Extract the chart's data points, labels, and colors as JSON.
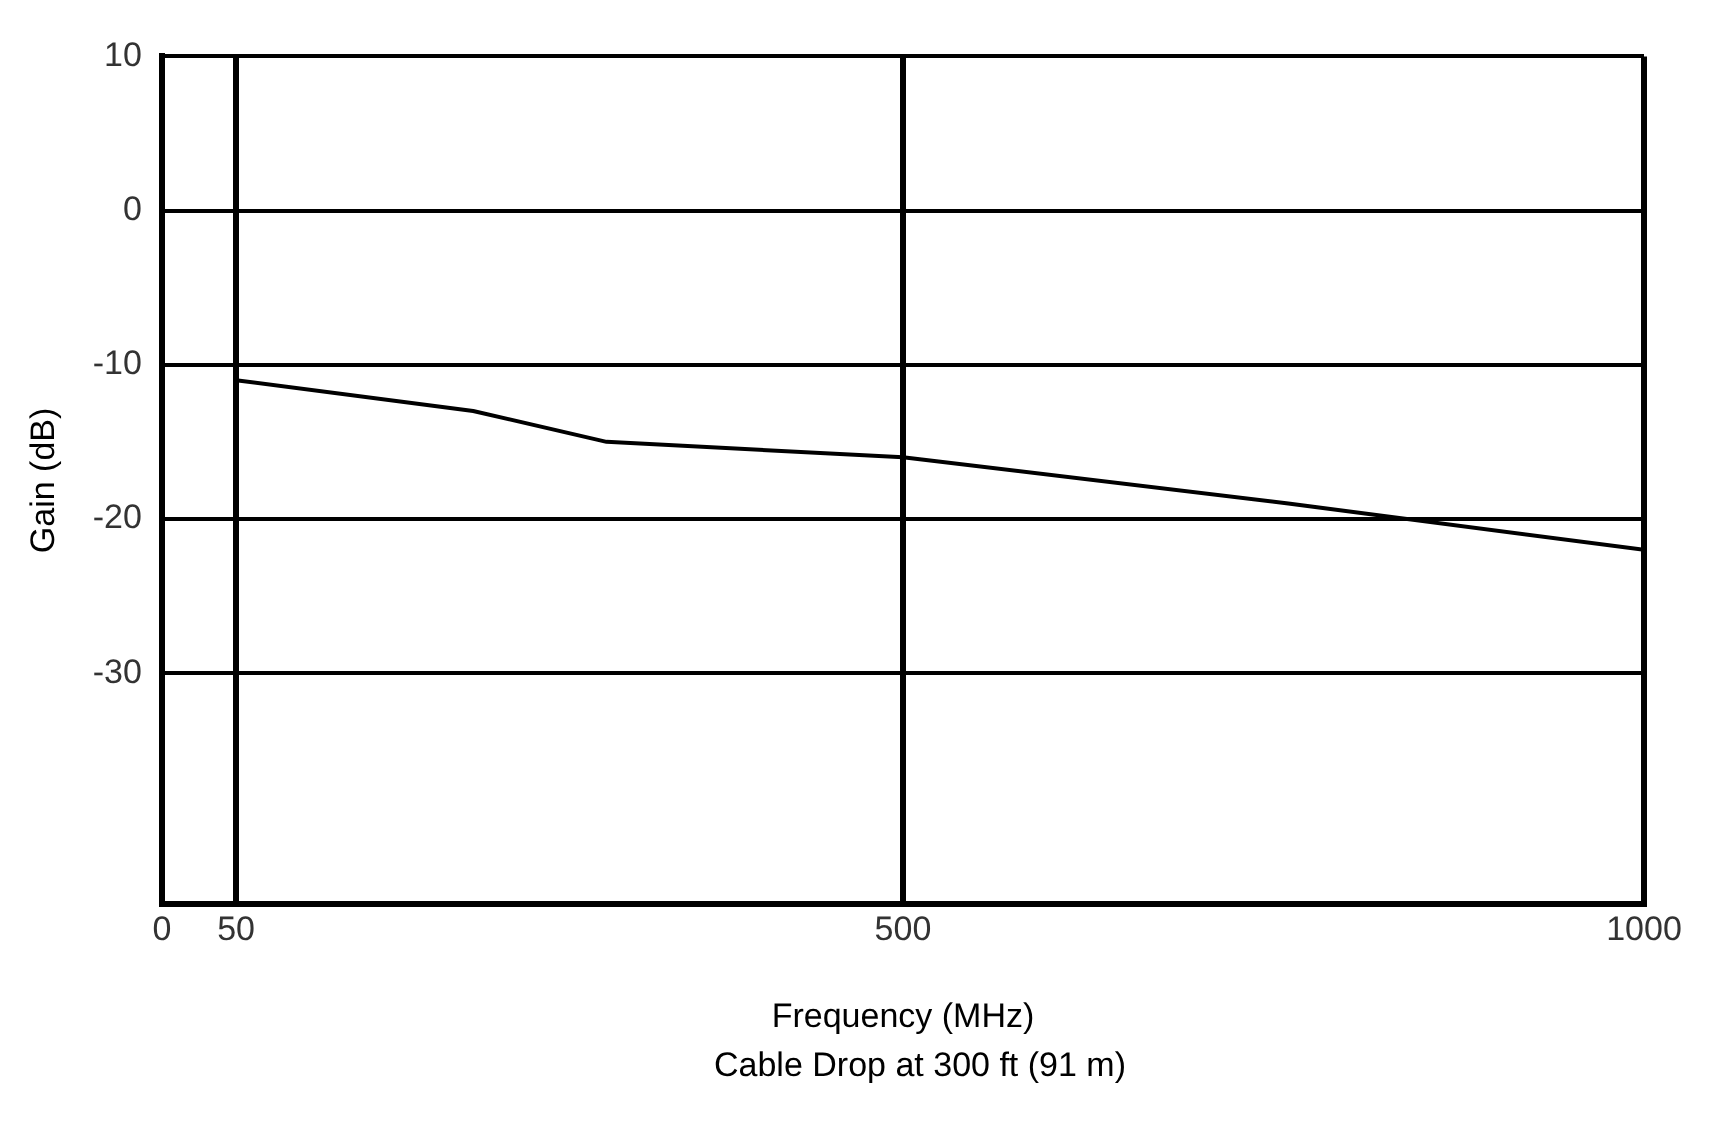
{
  "chart_data": {
    "type": "line",
    "xlabel": "Frequency (MHz)",
    "ylabel": "Gain (dB)",
    "x": [
      50,
      210,
      300,
      500,
      760,
      1000
    ],
    "series": [
      {
        "color": "#000000",
        "values": [
          -11,
          -13,
          -15,
          -16,
          -19,
          -22
        ]
      }
    ],
    "xlim": [
      0,
      1000
    ],
    "xticks": [
      0,
      50,
      500,
      1000
    ],
    "ylim": [
      -45,
      10
    ],
    "yticks": [
      10,
      0,
      -10,
      -20,
      -30
    ],
    "grid": true,
    "marker": "none",
    "line_style": "solid",
    "annotations": [
      "Cable Drop at 300 ft (91 m)"
    ]
  }
}
